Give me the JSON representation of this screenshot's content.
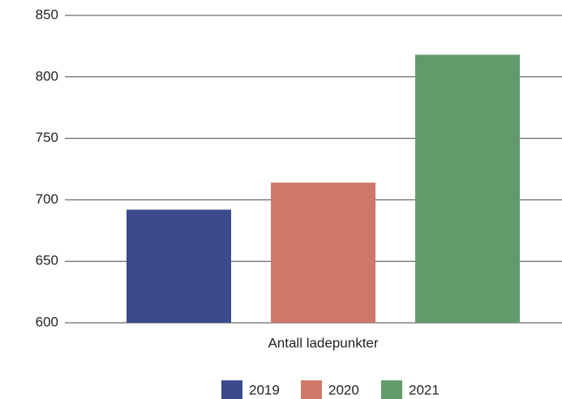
{
  "chart_data": {
    "type": "bar",
    "categories": [
      "Antall ladepunkter"
    ],
    "series": [
      {
        "name": "2019",
        "color": "#3a4a8c",
        "values": [
          692
        ]
      },
      {
        "name": "2020",
        "color": "#cf7869",
        "values": [
          714
        ]
      },
      {
        "name": "2021",
        "color": "#629a6c",
        "values": [
          818
        ]
      }
    ],
    "ylim": [
      600,
      850
    ],
    "yticks": [
      600,
      650,
      700,
      750,
      800,
      850
    ],
    "grid": true,
    "legend": "bottom"
  }
}
